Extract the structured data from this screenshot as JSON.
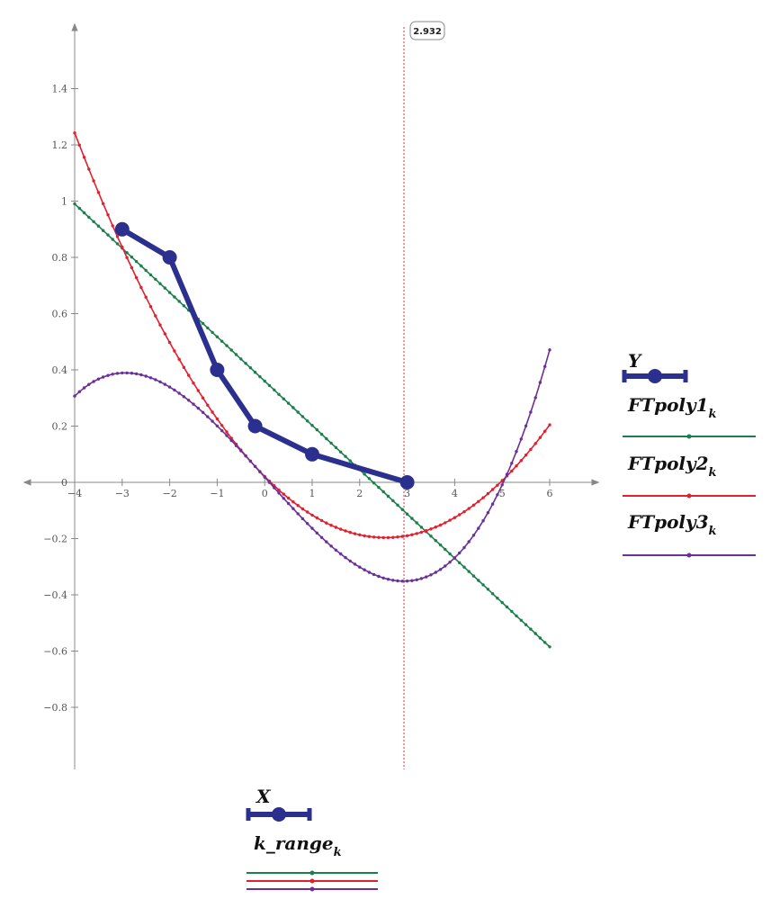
{
  "chart_data": {
    "type": "line",
    "xlim": [
      -4,
      6.3
    ],
    "ylim": [
      -1.02,
      1.62
    ],
    "x_ticks": [
      -4,
      -3,
      -2,
      -1,
      0,
      1,
      2,
      3,
      4,
      5,
      6
    ],
    "y_ticks": [
      -0.8,
      -0.6,
      -0.4,
      -0.2,
      0,
      0.2,
      0.4,
      0.6,
      0.8,
      1,
      1.2,
      1.4
    ],
    "x_tick_labels": [
      "−4",
      "−3",
      "−2",
      "−1",
      "0",
      "1",
      "2",
      "3",
      "4",
      "5",
      "6"
    ],
    "y_tick_labels": [
      "−0.8",
      "−0.6",
      "−0.4",
      "−0.2",
      "0",
      "0.2",
      "0.4",
      "0.6",
      "0.8",
      "1",
      "1.2",
      "1.4"
    ],
    "grid": false,
    "cursor": {
      "x": 2.932,
      "label": "2.932",
      "color": "#d9334d"
    },
    "data_series": {
      "x": [
        -3,
        -2,
        -1,
        -0.2,
        1,
        3
      ],
      "y": [
        0.9,
        0.8,
        0.4,
        0.2,
        0.1,
        0
      ],
      "color": "#2b2f8e"
    },
    "fits": {
      "x_range": [
        -4,
        6
      ],
      "points": 101,
      "series": [
        {
          "coeffs": [
            0.36,
            -0.1575
          ],
          "color": "#1a7f4b"
        },
        {
          "coeffs": [
            0.021,
            -0.171,
            0.0336
          ],
          "color": "#e0202e"
        },
        {
          "coeffs": [
            0.0185,
            -0.1895,
            5e-05,
            0.00735
          ],
          "color": "#6a2f9a"
        }
      ]
    },
    "legend_y": {
      "title": "Y",
      "entries": [
        {
          "base": "FTpoly1",
          "sub": "k",
          "color": "#1a7f4b"
        },
        {
          "base": "FTpoly2",
          "sub": "k",
          "color": "#e0202e"
        },
        {
          "base": "FTpoly3",
          "sub": "k",
          "color": "#6a2f9a"
        }
      ]
    },
    "legend_x": {
      "title": "X",
      "entry": {
        "base": "k_range",
        "sub": "k"
      }
    }
  }
}
